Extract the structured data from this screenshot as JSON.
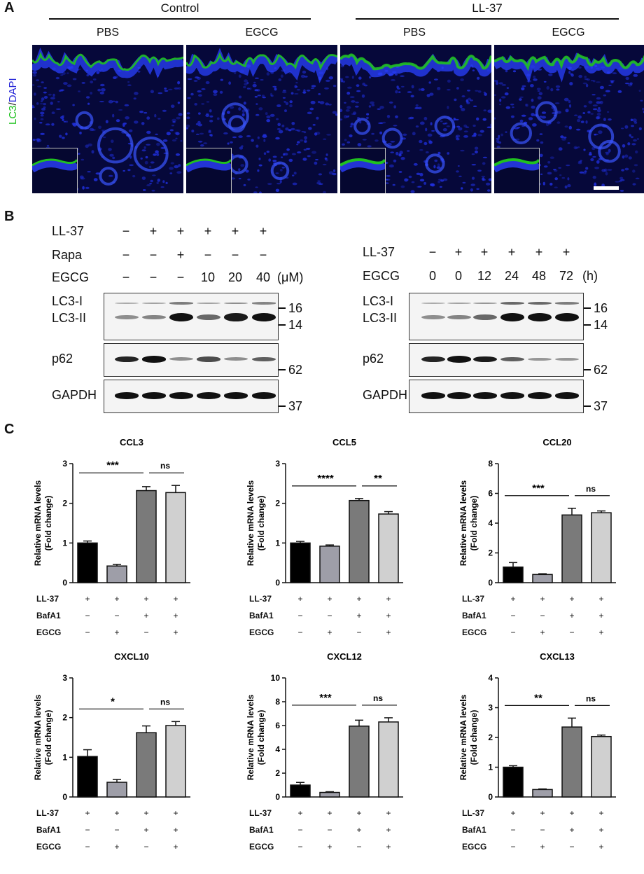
{
  "panel_labels": {
    "a": "A",
    "b": "B",
    "c": "C"
  },
  "panel_a": {
    "groups": [
      "Control",
      "LL-37"
    ],
    "subtitles": [
      "PBS",
      "EGCG",
      "PBS",
      "EGCG"
    ],
    "stain_label_green": "LC3",
    "stain_label_sep": "/",
    "stain_label_blue": "DAPI"
  },
  "panel_b_left": {
    "row_labels": [
      "LL-37",
      "Rapa",
      "EGCG"
    ],
    "rows": [
      [
        "−",
        "+",
        "+",
        "+",
        "+",
        "+"
      ],
      [
        "−",
        "−",
        "+",
        "−",
        "−",
        "−"
      ],
      [
        "−",
        "−",
        "−",
        "10",
        "20",
        "40"
      ]
    ],
    "unit": "(μM)",
    "blot_labels": [
      "LC3-I",
      "LC3-II",
      "p62",
      "GAPDH"
    ],
    "mw": [
      "16",
      "14",
      "62",
      "37"
    ],
    "lc3i_levels": [
      0.2,
      0.25,
      0.45,
      0.25,
      0.35,
      0.4
    ],
    "lc3ii_levels": [
      0.35,
      0.4,
      1.0,
      0.55,
      0.95,
      1.0
    ],
    "p62_levels": [
      0.9,
      1.0,
      0.35,
      0.7,
      0.35,
      0.6
    ],
    "gapdh_levels": [
      1.0,
      1.0,
      1.0,
      1.0,
      1.0,
      1.0
    ]
  },
  "panel_b_right": {
    "row_labels": [
      "LL-37",
      "EGCG"
    ],
    "rows": [
      [
        "−",
        "+",
        "+",
        "+",
        "+",
        "+"
      ],
      [
        "0",
        "0",
        "12",
        "24",
        "48",
        "72"
      ]
    ],
    "unit": "(h)",
    "blot_labels": [
      "LC3-I",
      "LC3-II",
      "p62",
      "GAPDH"
    ],
    "mw": [
      "16",
      "14",
      "62",
      "37"
    ],
    "lc3i_levels": [
      0.2,
      0.25,
      0.3,
      0.55,
      0.55,
      0.45
    ],
    "lc3ii_levels": [
      0.35,
      0.4,
      0.55,
      1.0,
      1.0,
      1.0
    ],
    "p62_levels": [
      0.9,
      1.0,
      0.95,
      0.6,
      0.3,
      0.3
    ],
    "gapdh_levels": [
      1.0,
      1.0,
      1.0,
      1.0,
      1.0,
      1.0
    ]
  },
  "panel_c_conditions": {
    "labels": [
      "LL-37",
      "BafA1",
      "EGCG"
    ],
    "rows": [
      [
        "+",
        "+",
        "+",
        "+"
      ],
      [
        "−",
        "−",
        "+",
        "+"
      ],
      [
        "−",
        "+",
        "−",
        "+"
      ]
    ]
  },
  "colors": {
    "bar_fills": [
      "#000000",
      "#9e9ea8",
      "#7a7a7a",
      "#d0d0d0"
    ],
    "nuclei": "#2030e0",
    "lc3": "#20c020",
    "background_tissue": "#06083a"
  },
  "chart_data": [
    {
      "type": "bar",
      "title": "CCL3",
      "ylabel": "Relative mRNA levels\n(Fold change)",
      "ylim": [
        0,
        3
      ],
      "yticks": [
        0,
        1,
        2,
        3
      ],
      "values": [
        1.0,
        0.42,
        2.32,
        2.27
      ],
      "errors": [
        0.05,
        0.04,
        0.1,
        0.18
      ],
      "significance": [
        {
          "from": 0,
          "to": 2,
          "label": "***"
        },
        {
          "from": 2,
          "to": 3,
          "label": "ns"
        }
      ]
    },
    {
      "type": "bar",
      "title": "CCL5",
      "ylabel": "Relative mRNA levels\n(Fold change)",
      "ylim": [
        0,
        3
      ],
      "yticks": [
        0,
        1,
        2,
        3
      ],
      "values": [
        1.0,
        0.92,
        2.07,
        1.73
      ],
      "errors": [
        0.04,
        0.03,
        0.05,
        0.06
      ],
      "significance": [
        {
          "from": 0,
          "to": 2,
          "label": "****"
        },
        {
          "from": 2,
          "to": 3,
          "label": "**"
        }
      ]
    },
    {
      "type": "bar",
      "title": "CCL20",
      "ylabel": "Relative mRNA levels\n(Fold change)",
      "ylim": [
        0,
        8
      ],
      "yticks": [
        0,
        2,
        4,
        6,
        8
      ],
      "values": [
        1.05,
        0.55,
        4.55,
        4.7
      ],
      "errors": [
        0.3,
        0.05,
        0.45,
        0.12
      ],
      "significance": [
        {
          "from": 0,
          "to": 2,
          "label": "***"
        },
        {
          "from": 2,
          "to": 3,
          "label": "ns"
        }
      ]
    },
    {
      "type": "bar",
      "title": "CXCL10",
      "ylabel": "Relative mRNA levels\n(Fold change)",
      "ylim": [
        0,
        3
      ],
      "yticks": [
        0,
        1,
        2,
        3
      ],
      "values": [
        1.02,
        0.37,
        1.62,
        1.8
      ],
      "errors": [
        0.17,
        0.07,
        0.17,
        0.1
      ],
      "significance": [
        {
          "from": 0,
          "to": 2,
          "label": "*"
        },
        {
          "from": 2,
          "to": 3,
          "label": "ns"
        }
      ]
    },
    {
      "type": "bar",
      "title": "CXCL12",
      "ylabel": "Relative mRNA levels\n(Fold change)",
      "ylim": [
        0,
        10
      ],
      "yticks": [
        0,
        2,
        4,
        6,
        8,
        10
      ],
      "values": [
        1.0,
        0.38,
        5.95,
        6.3
      ],
      "errors": [
        0.22,
        0.06,
        0.5,
        0.35
      ],
      "significance": [
        {
          "from": 0,
          "to": 2,
          "label": "***"
        },
        {
          "from": 2,
          "to": 3,
          "label": "ns"
        }
      ]
    },
    {
      "type": "bar",
      "title": "CXCL13",
      "ylabel": "Relative mRNA levels\n(Fold change)",
      "ylim": [
        0,
        4
      ],
      "yticks": [
        0,
        1,
        2,
        3,
        4
      ],
      "values": [
        1.0,
        0.25,
        2.35,
        2.03
      ],
      "errors": [
        0.05,
        0.02,
        0.3,
        0.05
      ],
      "significance": [
        {
          "from": 0,
          "to": 2,
          "label": "**"
        },
        {
          "from": 2,
          "to": 3,
          "label": "ns"
        }
      ]
    }
  ]
}
